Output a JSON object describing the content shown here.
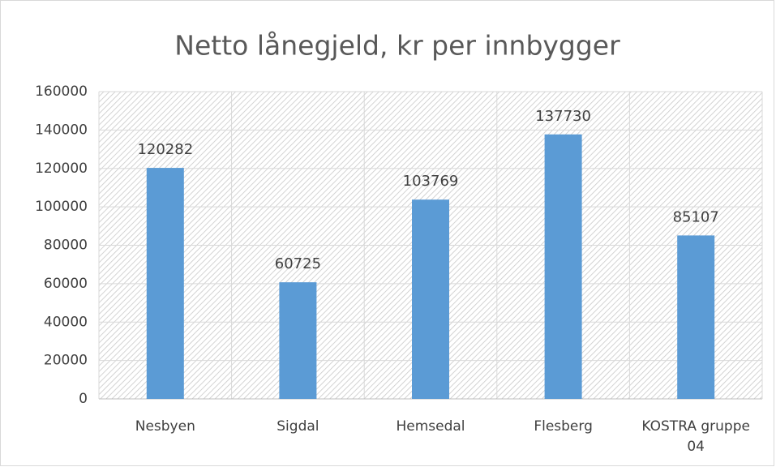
{
  "chart_data": {
    "type": "bar",
    "title": "Netto lånegjeld, kr per innbygger",
    "categories": [
      "Nesbyen",
      "Sigdal",
      "Hemsedal",
      "Flesberg",
      "KOSTRA gruppe 04"
    ],
    "values": [
      120282,
      60725,
      103769,
      137730,
      85107
    ],
    "color": "#5b9bd5",
    "ylim": [
      0,
      160000
    ],
    "yticks": [
      0,
      20000,
      40000,
      60000,
      80000,
      100000,
      120000,
      140000,
      160000
    ],
    "grid": true,
    "data_labels": true
  }
}
